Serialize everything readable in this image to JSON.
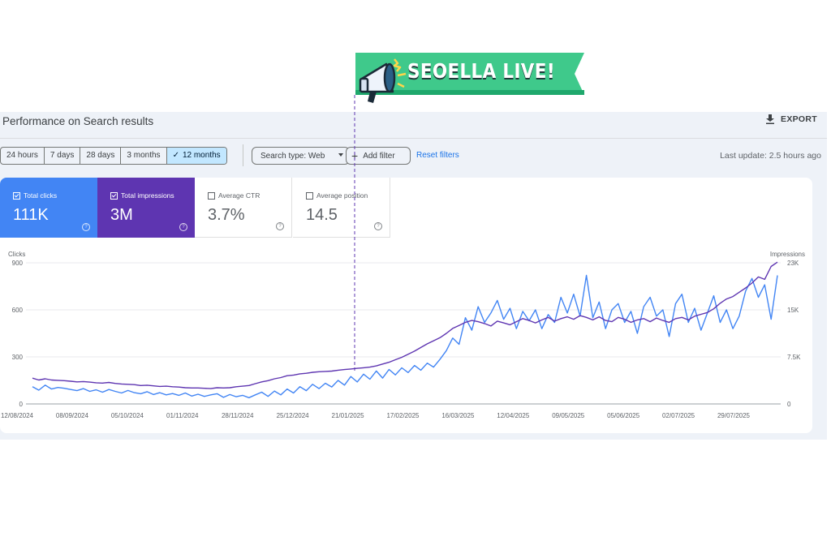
{
  "header": {
    "title": "Performance on Search results",
    "export_label": "EXPORT"
  },
  "date_ranges": [
    {
      "label": "24 hours",
      "active": false
    },
    {
      "label": "7 days",
      "active": false
    },
    {
      "label": "28 days",
      "active": false
    },
    {
      "label": "3 months",
      "active": false
    },
    {
      "label": "12 months",
      "active": true
    }
  ],
  "filters": {
    "search_type": "Search type: Web",
    "add_filter": "Add filter",
    "reset": "Reset filters",
    "last_update": "Last update: 2.5 hours ago"
  },
  "metrics": {
    "clicks": {
      "label": "Total clicks",
      "value": "111K",
      "checked": true,
      "color": "#4285f4"
    },
    "impressions": {
      "label": "Total impressions",
      "value": "3M",
      "checked": true,
      "color": "#5e35b1"
    },
    "ctr": {
      "label": "Average CTR",
      "value": "3.7%",
      "checked": false
    },
    "position": {
      "label": "Average position",
      "value": "14.5",
      "checked": false
    }
  },
  "banner": {
    "text": "SEOELLA LIVE!",
    "icon": "megaphone-icon"
  },
  "chart_data": {
    "type": "line",
    "ylabel_left": "Clicks",
    "ylabel_right": "Impressions",
    "y_left_ticks": [
      "0",
      "300",
      "600",
      "900"
    ],
    "y_right_ticks": [
      "0",
      "7.5K",
      "15K",
      "23K"
    ],
    "ylim_left": [
      0,
      900
    ],
    "ylim_right": [
      0,
      23000
    ],
    "x_ticks": [
      "12/08/2024",
      "08/09/2024",
      "05/10/2024",
      "01/11/2024",
      "28/11/2024",
      "25/12/2024",
      "21/01/2025",
      "17/02/2025",
      "16/03/2025",
      "12/04/2025",
      "09/05/2025",
      "05/06/2025",
      "02/07/2025",
      "29/07/2025"
    ],
    "grid": true,
    "annotation": {
      "date": "21/01/2025",
      "label": "SEOELLA LIVE!"
    },
    "series": [
      {
        "name": "Clicks",
        "axis": "left",
        "color": "#4285f4",
        "start": "12/08/2024",
        "step_days": 3,
        "values": [
          110,
          88,
          120,
          95,
          105,
          100,
          92,
          85,
          98,
          80,
          90,
          75,
          92,
          80,
          70,
          86,
          72,
          65,
          78,
          60,
          72,
          58,
          66,
          55,
          70,
          50,
          62,
          48,
          58,
          65,
          42,
          60,
          46,
          55,
          40,
          58,
          75,
          48,
          82,
          58,
          95,
          70,
          110,
          85,
          125,
          98,
          132,
          108,
          150,
          120,
          175,
          140,
          190,
          158,
          210,
          165,
          220,
          185,
          230,
          200,
          245,
          215,
          260,
          235,
          285,
          340,
          420,
          380,
          550,
          470,
          620,
          520,
          580,
          660,
          540,
          610,
          480,
          590,
          530,
          600,
          480,
          570,
          520,
          680,
          580,
          700,
          560,
          820,
          550,
          650,
          480,
          600,
          640,
          520,
          590,
          450,
          620,
          680,
          560,
          600,
          430,
          640,
          700,
          520,
          610,
          470,
          580,
          690,
          520,
          600,
          480,
          560,
          720,
          800,
          680,
          760,
          540,
          820
        ]
      },
      {
        "name": "Impressions",
        "axis": "right",
        "color": "#5e35b1",
        "start": "12/08/2024",
        "step_days": 3,
        "values": [
          4200,
          3900,
          4100,
          3900,
          3850,
          3800,
          3700,
          3600,
          3650,
          3550,
          3450,
          3400,
          3500,
          3350,
          3250,
          3200,
          3150,
          3000,
          3050,
          2950,
          2850,
          2900,
          2800,
          2750,
          2650,
          2600,
          2600,
          2550,
          2500,
          2650,
          2600,
          2650,
          2800,
          2900,
          3000,
          3300,
          3600,
          3800,
          4100,
          4300,
          4600,
          4700,
          4900,
          5000,
          5150,
          5250,
          5300,
          5350,
          5500,
          5600,
          5700,
          5800,
          5900,
          6000,
          6200,
          6500,
          6800,
          7200,
          7600,
          8100,
          8600,
          9200,
          9800,
          10300,
          10800,
          11500,
          12300,
          12800,
          13300,
          13600,
          13400,
          13100,
          12700,
          13500,
          13200,
          12900,
          13400,
          13900,
          13600,
          13200,
          13700,
          14100,
          13500,
          13900,
          14200,
          13800,
          14400,
          14100,
          13700,
          14200,
          13600,
          13400,
          14100,
          13800,
          13300,
          13700,
          13900,
          13400,
          14000,
          13600,
          13300,
          13900,
          14100,
          13700,
          14300,
          14600,
          14900,
          15500,
          16400,
          17100,
          17500,
          18200,
          18900,
          19700,
          20700,
          20300,
          22400,
          23100
        ]
      }
    ]
  }
}
